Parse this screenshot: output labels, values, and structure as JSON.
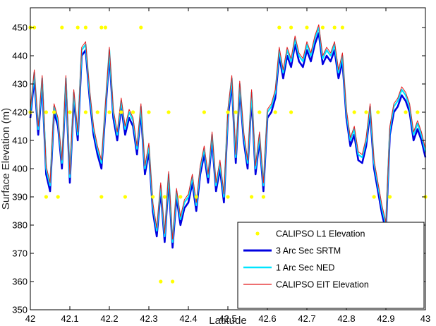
{
  "chart_data": {
    "type": "line",
    "xlabel": "Latitude",
    "ylabel": "Surface Elevation (m)",
    "xlim": [
      42,
      43
    ],
    "ylim": [
      350,
      457
    ],
    "xticks": [
      42,
      42.1,
      42.2,
      42.3,
      42.4,
      42.5,
      42.6,
      42.7,
      42.8,
      42.9,
      43
    ],
    "xtick_labels": [
      "42",
      "42.1",
      "42.2",
      "42.3",
      "42.4",
      "42.5",
      "42.6",
      "42.7",
      "42.8",
      "42.9",
      "43"
    ],
    "yticks": [
      350,
      360,
      370,
      380,
      390,
      400,
      410,
      420,
      430,
      440,
      450
    ],
    "ytick_labels": [
      "350",
      "360",
      "370",
      "380",
      "390",
      "400",
      "410",
      "420",
      "430",
      "440",
      "450"
    ],
    "grid": false,
    "legend_position": "bottom-right",
    "profile_x": [
      42.0,
      42.01,
      42.02,
      42.03,
      42.04,
      42.05,
      42.06,
      42.07,
      42.08,
      42.09,
      42.1,
      42.11,
      42.12,
      42.13,
      42.14,
      42.15,
      42.16,
      42.17,
      42.18,
      42.19,
      42.2,
      42.21,
      42.22,
      42.23,
      42.24,
      42.25,
      42.26,
      42.27,
      42.28,
      42.29,
      42.3,
      42.31,
      42.32,
      42.33,
      42.34,
      42.35,
      42.36,
      42.37,
      42.38,
      42.39,
      42.4,
      42.41,
      42.42,
      42.43,
      42.44,
      42.45,
      42.46,
      42.47,
      42.48,
      42.49,
      42.5,
      42.51,
      42.52,
      42.53,
      42.54,
      42.55,
      42.56,
      42.57,
      42.58,
      42.59,
      42.6,
      42.61,
      42.62,
      42.63,
      42.64,
      42.65,
      42.66,
      42.67,
      42.68,
      42.69,
      42.7,
      42.71,
      42.72,
      42.73,
      42.74,
      42.75,
      42.76,
      42.77,
      42.78,
      42.79,
      42.8,
      42.81,
      42.82,
      42.83,
      42.84,
      42.85,
      42.86,
      42.87,
      42.88,
      42.89,
      42.9,
      42.91,
      42.92,
      42.93,
      42.94,
      42.95,
      42.96,
      42.97,
      42.98,
      42.99,
      43.0
    ],
    "series": [
      {
        "name": "3 Arc Sec SRTM",
        "style": "line",
        "color": "#0000e0",
        "y": [
          418,
          432,
          412,
          430,
          398,
          392,
          420,
          415,
          400,
          430,
          395,
          425,
          410,
          440,
          442,
          425,
          412,
          405,
          400,
          420,
          440,
          418,
          410,
          422,
          412,
          418,
          415,
          405,
          420,
          398,
          406,
          385,
          376,
          392,
          374,
          396,
          372,
          390,
          380,
          386,
          388,
          395,
          385,
          398,
          405,
          395,
          410,
          392,
          400,
          388,
          418,
          430,
          402,
          428,
          410,
          400,
          425,
          398,
          410,
          392,
          418,
          420,
          425,
          440,
          432,
          440,
          436,
          444,
          438,
          436,
          442,
          438,
          444,
          448,
          437,
          440,
          438,
          442,
          432,
          438,
          418,
          408,
          412,
          403,
          402,
          408,
          420,
          400,
          392,
          384,
          378,
          412,
          420,
          422,
          426,
          424,
          420,
          410,
          414,
          410,
          404
        ]
      },
      {
        "name": "1 Arc Sec NED",
        "style": "line",
        "color": "#00e5ff",
        "y": [
          420,
          434,
          414,
          432,
          400,
          394,
          422,
          417,
          402,
          432,
          397,
          427,
          412,
          442,
          444,
          427,
          414,
          407,
          402,
          422,
          442,
          420,
          412,
          424,
          414,
          420,
          417,
          407,
          422,
          400,
          408,
          387,
          378,
          394,
          376,
          398,
          374,
          392,
          382,
          388,
          390,
          397,
          387,
          400,
          407,
          397,
          412,
          394,
          402,
          390,
          420,
          432,
          404,
          430,
          412,
          402,
          427,
          400,
          412,
          394,
          420,
          422,
          427,
          442,
          434,
          442,
          438,
          446,
          440,
          438,
          444,
          440,
          446,
          450,
          439,
          442,
          440,
          444,
          434,
          440,
          420,
          410,
          414,
          405,
          404,
          410,
          422,
          402,
          394,
          386,
          380,
          414,
          422,
          424,
          428,
          426,
          422,
          412,
          416,
          412,
          406
        ]
      },
      {
        "name": "CALIPSO EIT Elevation",
        "style": "line",
        "color": "#e41a1c",
        "y": [
          421,
          435,
          415,
          433,
          401,
          395,
          423,
          418,
          403,
          433,
          398,
          428,
          413,
          443,
          445,
          428,
          415,
          408,
          403,
          423,
          443,
          421,
          413,
          425,
          415,
          421,
          418,
          408,
          423,
          401,
          409,
          388,
          379,
          395,
          377,
          399,
          375,
          393,
          383,
          389,
          391,
          398,
          388,
          401,
          408,
          398,
          413,
          395,
          403,
          391,
          421,
          433,
          405,
          431,
          413,
          403,
          428,
          401,
          413,
          395,
          421,
          423,
          428,
          443,
          435,
          443,
          439,
          447,
          441,
          439,
          445,
          441,
          447,
          451,
          440,
          443,
          441,
          445,
          435,
          441,
          421,
          411,
          415,
          406,
          405,
          411,
          423,
          403,
          395,
          387,
          381,
          415,
          423,
          425,
          429,
          427,
          423,
          413,
          417,
          413,
          407
        ]
      },
      {
        "name": "CALIPSO L1 Elevation",
        "style": "points",
        "color": "#ffff00",
        "points": [
          [
            42.0,
            450
          ],
          [
            42.01,
            450
          ],
          [
            42.08,
            450
          ],
          [
            42.12,
            450
          ],
          [
            42.14,
            450
          ],
          [
            42.18,
            450
          ],
          [
            42.19,
            450
          ],
          [
            42.28,
            450
          ],
          [
            42.0,
            420
          ],
          [
            42.04,
            420
          ],
          [
            42.06,
            420
          ],
          [
            42.1,
            420
          ],
          [
            42.14,
            420
          ],
          [
            42.17,
            420
          ],
          [
            42.2,
            420
          ],
          [
            42.23,
            420
          ],
          [
            42.26,
            420
          ],
          [
            42.3,
            420
          ],
          [
            42.35,
            420
          ],
          [
            42.44,
            420
          ],
          [
            42.5,
            420
          ],
          [
            42.52,
            420
          ],
          [
            42.58,
            420
          ],
          [
            42.62,
            420
          ],
          [
            42.66,
            420
          ],
          [
            42.82,
            420
          ],
          [
            42.85,
            420
          ],
          [
            42.88,
            420
          ],
          [
            42.95,
            420
          ],
          [
            42.98,
            420
          ],
          [
            42.04,
            390
          ],
          [
            42.07,
            390
          ],
          [
            42.18,
            390
          ],
          [
            42.24,
            390
          ],
          [
            42.31,
            390
          ],
          [
            42.34,
            390
          ],
          [
            42.38,
            390
          ],
          [
            42.42,
            390
          ],
          [
            42.5,
            390
          ],
          [
            42.56,
            390
          ],
          [
            42.59,
            390
          ],
          [
            42.87,
            390
          ],
          [
            42.91,
            390
          ],
          [
            43.0,
            390
          ],
          [
            42.33,
            360
          ],
          [
            42.36,
            360
          ],
          [
            42.63,
            450
          ],
          [
            42.66,
            450
          ],
          [
            42.7,
            450
          ],
          [
            42.74,
            450
          ],
          [
            42.77,
            450
          ],
          [
            42.79,
            450
          ]
        ]
      }
    ],
    "legend": [
      {
        "label": "CALIPSO L1 Elevation",
        "color": "#ffff00",
        "style": "point"
      },
      {
        "label": "3 Arc Sec SRTM",
        "color": "#0000e0",
        "style": "line"
      },
      {
        "label": "1 Arc Sec NED",
        "color": "#00e5ff",
        "style": "line"
      },
      {
        "label": "CALIPSO EIT Elevation",
        "color": "#e41a1c",
        "style": "line"
      }
    ]
  }
}
